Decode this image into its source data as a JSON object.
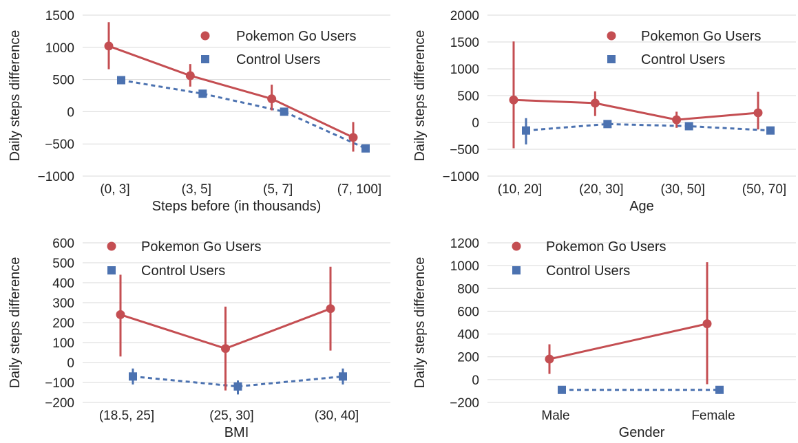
{
  "colors": {
    "pokemon": "#c44e52",
    "control": "#4c72b0",
    "grid": "#d9d9d9",
    "text": "#222222"
  },
  "chart_data": [
    {
      "type": "line",
      "xlabel": "Steps before (in thousands)",
      "ylabel": "Daily steps difference",
      "categories": [
        "(0, 3]",
        "(3, 5]",
        "(5, 7]",
        "(7, 100]"
      ],
      "ylim": [
        -1000,
        1500
      ],
      "yticks": [
        -1000,
        -500,
        0,
        500,
        1000,
        1500
      ],
      "grid": true,
      "legend_position": "top-right",
      "series": [
        {
          "name": "Pokemon Go Users",
          "marker": "circle",
          "style": "solid",
          "values": [
            1020,
            560,
            200,
            -400
          ],
          "err_low": [
            660,
            390,
            20,
            -620
          ],
          "err_high": [
            1390,
            740,
            420,
            -160
          ]
        },
        {
          "name": "Control Users",
          "marker": "square",
          "style": "dashed",
          "values": [
            490,
            280,
            0,
            -570
          ],
          "err_low": [
            480,
            270,
            -15,
            -600
          ],
          "err_high": [
            505,
            295,
            15,
            -540
          ]
        }
      ]
    },
    {
      "type": "line",
      "xlabel": "Age",
      "ylabel": "Daily steps difference",
      "categories": [
        "(10, 20]",
        "(20, 30]",
        "(30, 50]",
        "(50, 70]"
      ],
      "ylim": [
        -1000,
        2000
      ],
      "yticks": [
        -1000,
        -500,
        0,
        500,
        1000,
        1500,
        2000
      ],
      "grid": true,
      "legend_position": "top-right",
      "series": [
        {
          "name": "Pokemon Go Users",
          "marker": "circle",
          "style": "solid",
          "values": [
            420,
            360,
            50,
            180
          ],
          "err_low": [
            -480,
            120,
            -100,
            -130
          ],
          "err_high": [
            1510,
            580,
            200,
            570
          ]
        },
        {
          "name": "Control Users",
          "marker": "square",
          "style": "dashed",
          "values": [
            -150,
            -30,
            -70,
            -150
          ],
          "err_low": [
            -410,
            -45,
            -90,
            -170
          ],
          "err_high": [
            80,
            -15,
            -50,
            -130
          ]
        }
      ]
    },
    {
      "type": "line",
      "xlabel": "BMI",
      "ylabel": "Daily steps difference",
      "categories": [
        "(18.5, 25]",
        "(25, 30]",
        "(30, 40]"
      ],
      "ylim": [
        -200,
        600
      ],
      "yticks": [
        -200,
        -100,
        0,
        100,
        200,
        300,
        400,
        500,
        600
      ],
      "grid": true,
      "legend_position": "top-left",
      "series": [
        {
          "name": "Pokemon Go Users",
          "marker": "circle",
          "style": "solid",
          "values": [
            240,
            70,
            270
          ],
          "err_low": [
            30,
            -140,
            60
          ],
          "err_high": [
            440,
            280,
            480
          ]
        },
        {
          "name": "Control Users",
          "marker": "square",
          "style": "dashed",
          "values": [
            -70,
            -120,
            -70
          ],
          "err_low": [
            -110,
            -160,
            -110
          ],
          "err_high": [
            -30,
            -90,
            -30
          ]
        }
      ]
    },
    {
      "type": "line",
      "xlabel": "Gender",
      "ylabel": "Daily steps difference",
      "categories": [
        "Male",
        "Female"
      ],
      "ylim": [
        -200,
        1200
      ],
      "yticks": [
        -200,
        0,
        200,
        400,
        600,
        800,
        1000,
        1200
      ],
      "grid": true,
      "legend_position": "top-left",
      "series": [
        {
          "name": "Pokemon Go Users",
          "marker": "circle",
          "style": "solid",
          "values": [
            180,
            490
          ],
          "err_low": [
            50,
            -40
          ],
          "err_high": [
            310,
            1030
          ]
        },
        {
          "name": "Control Users",
          "marker": "square",
          "style": "dashed",
          "values": [
            -90,
            -90
          ],
          "err_low": [
            -95,
            -125
          ],
          "err_high": [
            -85,
            -60
          ]
        }
      ]
    }
  ]
}
